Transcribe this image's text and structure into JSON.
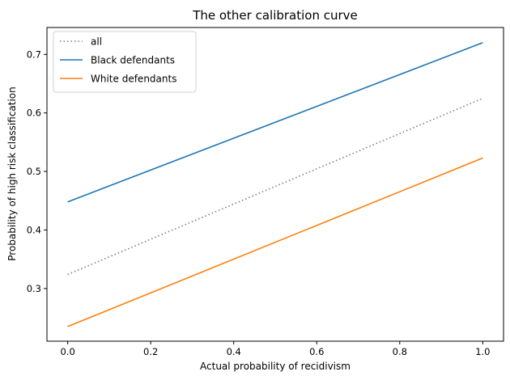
{
  "chart_data": {
    "type": "line",
    "title": "The other calibration curve",
    "xlabel": "Actual probability of recidivism",
    "ylabel": "Probability of high risk classification",
    "xlim": [
      -0.05,
      1.05
    ],
    "ylim": [
      0.21,
      0.746
    ],
    "xticks": [
      0.0,
      0.2,
      0.4,
      0.6,
      0.8,
      1.0
    ],
    "xtick_labels": [
      "0.0",
      "0.2",
      "0.4",
      "0.6",
      "0.8",
      "1.0"
    ],
    "yticks": [
      0.3,
      0.4,
      0.5,
      0.6,
      0.7
    ],
    "ytick_labels": [
      "0.3",
      "0.4",
      "0.5",
      "0.6",
      "0.7"
    ],
    "grid": false,
    "legend_position": "top-left",
    "series": [
      {
        "name": "all",
        "color": "#7f7f7f",
        "style": "dotted",
        "x": [
          0.0,
          1.0
        ],
        "y": [
          0.324,
          0.625
        ]
      },
      {
        "name": "Black defendants",
        "color": "#1f77b4",
        "style": "solid",
        "x": [
          0.0,
          1.0
        ],
        "y": [
          0.448,
          0.72
        ]
      },
      {
        "name": "White defendants",
        "color": "#ff7f0e",
        "style": "solid",
        "x": [
          0.0,
          1.0
        ],
        "y": [
          0.235,
          0.523
        ]
      }
    ]
  }
}
